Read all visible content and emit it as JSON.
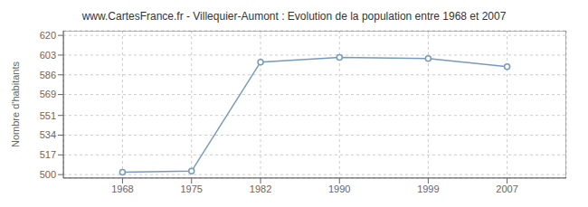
{
  "chart_data": {
    "type": "line",
    "title": "www.CartesFrance.fr - Villequier-Aumont : Evolution de la population entre 1968 et 2007",
    "ylabel": "Nombre d'habitants",
    "x": [
      1968,
      1975,
      1982,
      1990,
      1999,
      2007
    ],
    "values": [
      502,
      503,
      597,
      601,
      600,
      593
    ],
    "color": "#7799bb",
    "marker": "circle",
    "xlim": [
      1962,
      2013
    ],
    "ylim": [
      497,
      624
    ],
    "xticks": [
      1968,
      1975,
      1982,
      1990,
      1999,
      2007
    ],
    "yticks": [
      500,
      517,
      534,
      551,
      569,
      586,
      603,
      620
    ],
    "grid": true
  }
}
